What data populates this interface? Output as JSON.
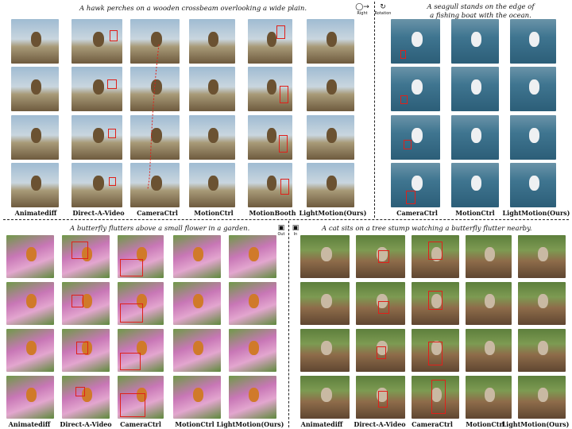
{
  "captions": {
    "hawk": "A hawk perches on a wooden crossbeam overlooking a wide plain.",
    "seagull_line1": "A seagull stands on the edge of",
    "seagull_line2": "a fishing boat with the ocean.",
    "butterfly": "A butterfly flutters above a small flower in a garden.",
    "cat": "A cat sits on a tree stump watching a butterfly flutter nearby."
  },
  "camera_tags": {
    "right": "Right",
    "rotation": "Rotation",
    "out": "Out",
    "in": "In"
  },
  "panels": {
    "hawk": {
      "labels": [
        "Animatediff",
        "Direct-A-Video",
        "CameraCtrl",
        "MotionCtrl",
        "MotionBooth",
        "LightMotion(Ours)"
      ]
    },
    "seagull": {
      "labels": [
        "CameraCtrl",
        "MotionCtrl",
        "LightMotion(Ours)"
      ]
    },
    "butterfly": {
      "labels": [
        "Animatediff",
        "Direct-A-Video",
        "CameraCtrl",
        "MotionCtrl",
        "LightMotion(Ours)"
      ]
    },
    "cat": {
      "labels": [
        "Animatediff",
        "Direct-A-Video",
        "CameraCtrl",
        "MotionCtrl",
        "LightMotion(Ours)"
      ]
    }
  },
  "colors": {
    "bbox": "#e0201a",
    "sky": "#8fb0c8",
    "sea": "#2f6f8f",
    "wood": "#7a5a3a",
    "garden_pink": "#d46aa8",
    "garden_green": "#4f7f3a",
    "tree": "#8a6a48"
  }
}
